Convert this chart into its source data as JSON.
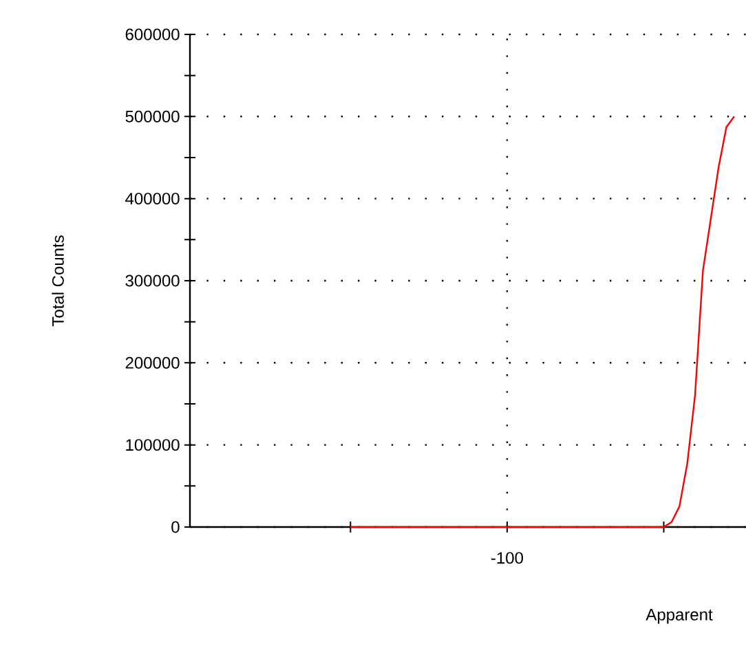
{
  "chart_data": {
    "type": "line",
    "xlabel": "Apparent",
    "ylabel": "Total Counts",
    "categories": [
      null,
      null,
      null,
      null,
      null,
      null,
      null,
      null,
      null,
      null,
      null,
      null,
      null,
      null,
      null,
      null,
      null,
      null,
      null,
      null,
      null,
      null,
      null,
      null,
      null,
      null,
      null,
      null,
      null,
      null,
      null,
      null,
      null,
      null,
      null,
      null,
      null,
      null,
      null,
      null,
      null,
      null,
      null,
      null,
      null,
      null,
      null,
      null,
      null,
      null,
      null,
      null,
      null,
      null,
      null,
      null,
      null,
      null,
      null,
      null,
      null,
      null,
      null,
      null,
      null,
      null,
      null,
      null,
      null,
      null,
      null
    ],
    "values": [
      null,
      null,
      null,
      null,
      null,
      null,
      null,
      null,
      null,
      null,
      null,
      null,
      null,
      null,
      null,
      null,
      null,
      null,
      null,
      null,
      0,
      0,
      0,
      0,
      0,
      0,
      0,
      0,
      0,
      0,
      0,
      0,
      0,
      0,
      0,
      0,
      0,
      0,
      0,
      0,
      0,
      0,
      0,
      0,
      0,
      0,
      0,
      0,
      0,
      0,
      0,
      0,
      0,
      0,
      0,
      0,
      0,
      0,
      0,
      0,
      0,
      6000,
      25000,
      77000,
      161000,
      312000,
      375000,
      438000,
      487000,
      500000,
      null
    ],
    "color": "#ff0000",
    "annotations": [
      "-100"
    ],
    "ylim": [
      0,
      600000
    ],
    "yticks": [
      0,
      {
        "value": 50000,
        "label": null
      },
      100000,
      {
        "value": 150000,
        "label": null
      },
      200000,
      {
        "value": 250000,
        "label": null
      },
      300000,
      {
        "value": 350000,
        "label": null
      },
      400000,
      {
        "value": 450000,
        "label": null
      },
      500000,
      {
        "value": 550000,
        "label": null
      },
      600000
    ],
    "grid": "y",
    "line_style": "solid"
  }
}
